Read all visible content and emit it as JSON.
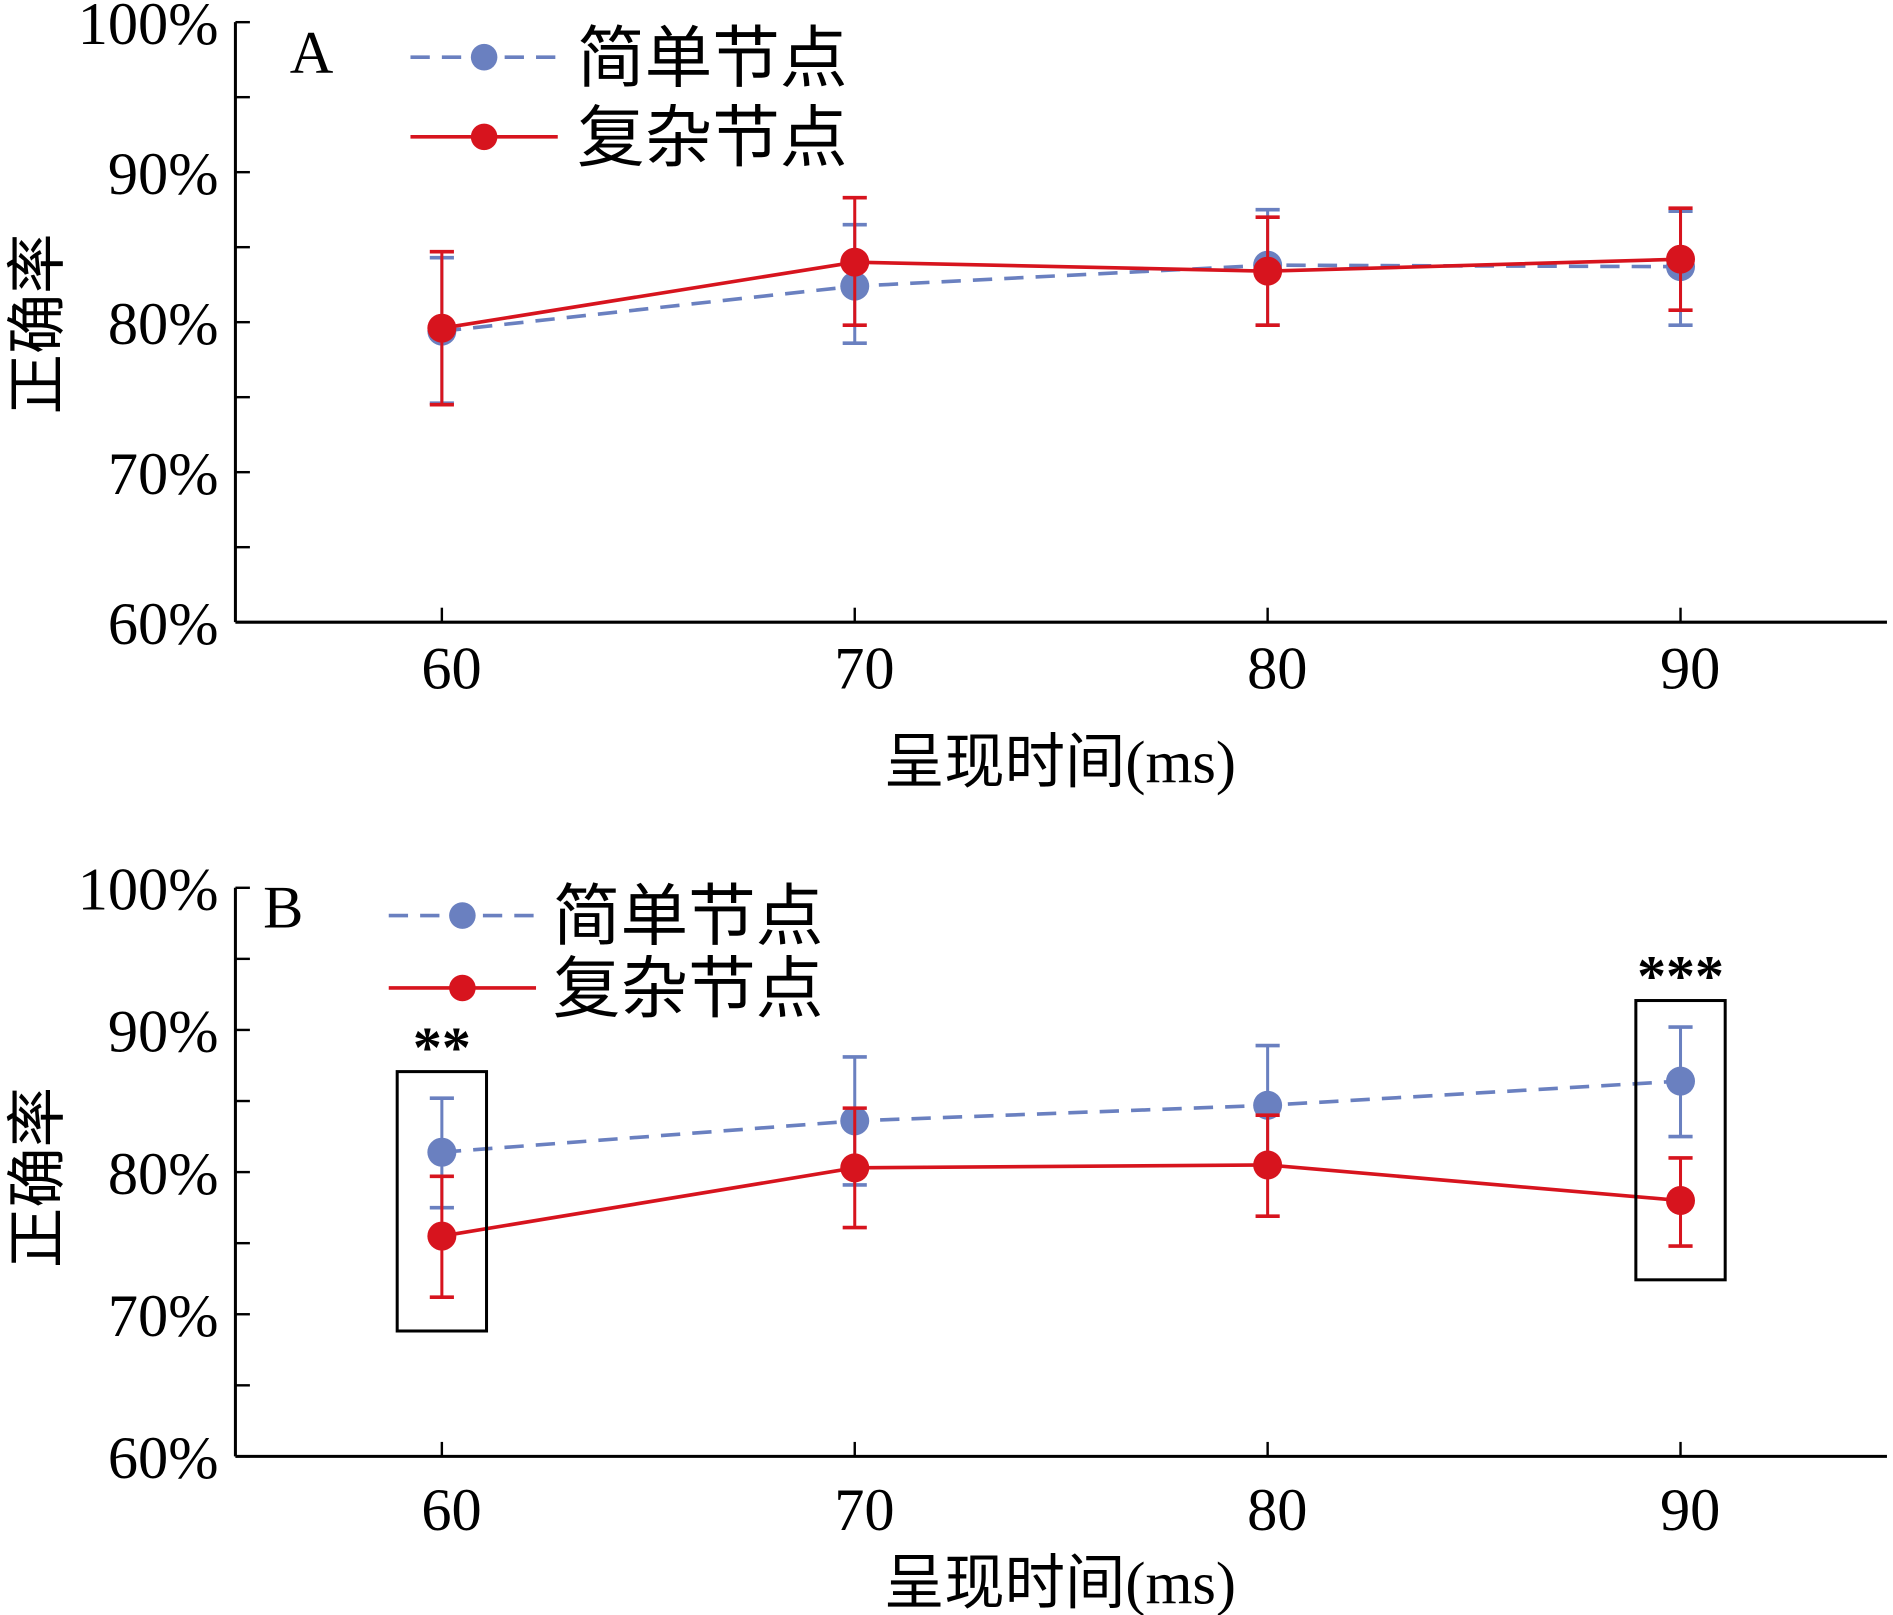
{
  "chart_data": [
    {
      "type": "line",
      "panel_label": "A",
      "ylabel": "正确率",
      "xlabel": "呈现时间(ms)",
      "x": [
        60,
        70,
        80,
        90
      ],
      "xlim": [
        55,
        95
      ],
      "ylim": [
        60,
        100
      ],
      "yticks": [
        "60%",
        "70%",
        "80%",
        "90%",
        "100%"
      ],
      "xticks": [
        "60",
        "70",
        "80",
        "90"
      ],
      "legend_position": "top-left",
      "series": [
        {
          "name": "简单节点",
          "color": "#6a80c0",
          "style": "dashed",
          "values": [
            79.4,
            82.4,
            83.8,
            83.7
          ],
          "err_low": [
            74.6,
            78.6,
            79.8,
            79.8
          ],
          "err_high": [
            84.3,
            86.5,
            87.5,
            87.4
          ]
        },
        {
          "name": "复杂节点",
          "color": "#d7141e",
          "style": "solid",
          "values": [
            79.6,
            84.0,
            83.4,
            84.2
          ],
          "err_low": [
            74.5,
            79.8,
            79.8,
            80.8
          ],
          "err_high": [
            84.7,
            88.3,
            87.0,
            87.6
          ]
        }
      ],
      "annotations": []
    },
    {
      "type": "line",
      "panel_label": "B",
      "ylabel": "正确率",
      "xlabel": "呈现时间(ms)",
      "x": [
        60,
        70,
        80,
        90
      ],
      "xlim": [
        55,
        95
      ],
      "ylim": [
        60,
        100
      ],
      "yticks": [
        "60%",
        "70%",
        "80%",
        "90%",
        "100%"
      ],
      "xticks": [
        "60",
        "70",
        "80",
        "90"
      ],
      "legend_position": "top-left",
      "series": [
        {
          "name": "简单节点",
          "color": "#6a80c0",
          "style": "dashed",
          "values": [
            81.4,
            83.6,
            84.7,
            86.4
          ],
          "err_low": [
            77.5,
            79.1,
            80.4,
            82.5
          ],
          "err_high": [
            85.2,
            88.1,
            88.9,
            90.2
          ]
        },
        {
          "name": "复杂节点",
          "color": "#d7141e",
          "style": "solid",
          "values": [
            75.5,
            80.3,
            80.5,
            78.0
          ],
          "err_low": [
            71.2,
            76.1,
            76.9,
            74.8
          ],
          "err_high": [
            79.7,
            84.5,
            84.0,
            81.0
          ]
        }
      ],
      "annotations": [
        {
          "x": 60,
          "text": "**"
        },
        {
          "x": 90,
          "text": "***"
        }
      ]
    }
  ]
}
